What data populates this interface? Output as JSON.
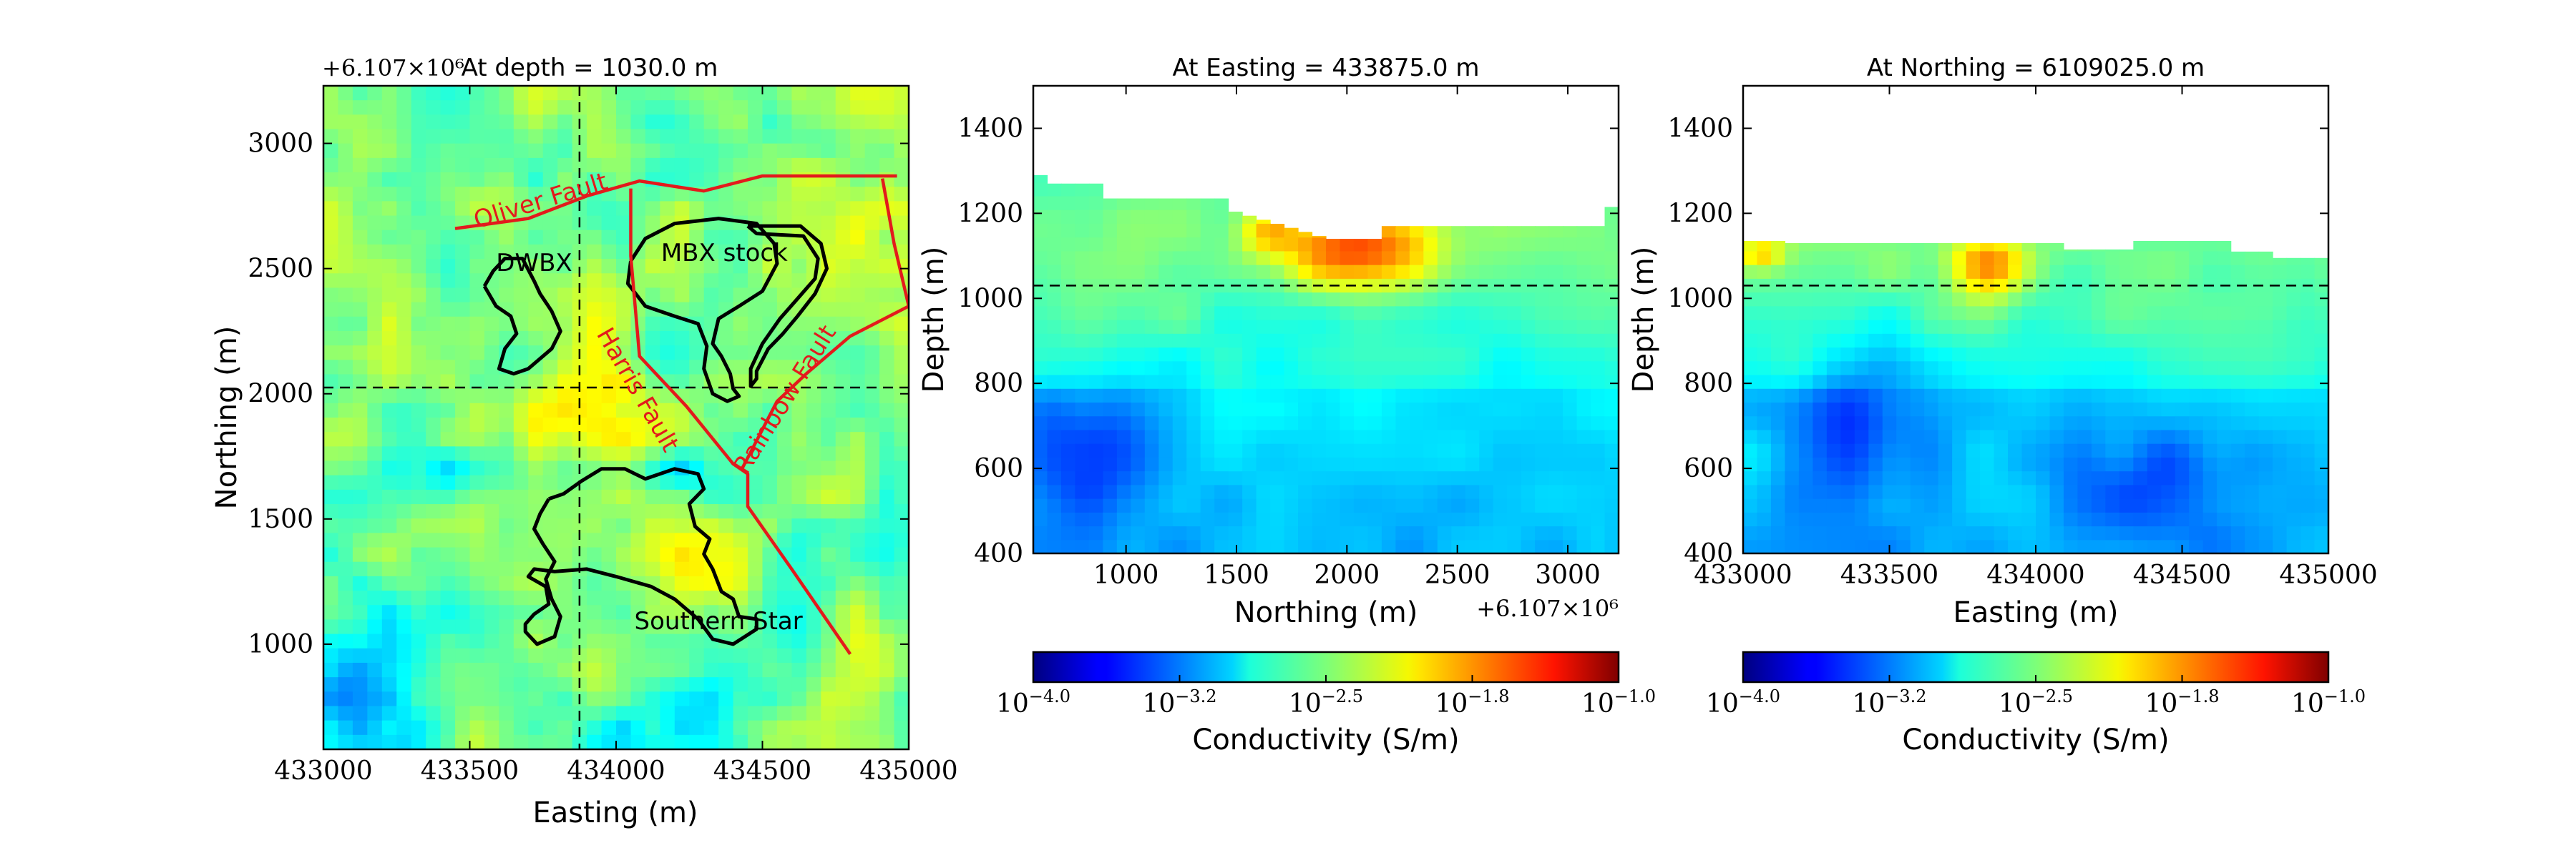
{
  "chart_data": [
    {
      "type": "heatmap",
      "title": "At depth = 1030.0 m",
      "xlabel": "Easting (m)",
      "ylabel": "Northing (m)",
      "xlim": [
        433000,
        435000
      ],
      "ylim": [
        580,
        3230
      ],
      "xticks": [
        433000,
        433500,
        434000,
        434500,
        435000
      ],
      "xtick_labels": [
        "433000",
        "433500",
        "434000",
        "434500",
        "435000"
      ],
      "yticks": [
        1000,
        1500,
        2000,
        2500,
        3000
      ],
      "ytick_labels": [
        "1000",
        "1500",
        "2000",
        "2500",
        "3000"
      ],
      "offset_text": "+6.107×10⁶",
      "crosshair": {
        "easting": 433875,
        "northing": 2025
      },
      "geology_labels": [
        {
          "text": "DWBX",
          "x": 433720,
          "y": 2490
        },
        {
          "text": "MBX stock",
          "x": 434370,
          "y": 2530
        },
        {
          "text": "Southern Star",
          "x": 434350,
          "y": 1060
        }
      ],
      "fault_labels": [
        {
          "text": "Oliver Fault",
          "x": 433750,
          "y": 2740,
          "angle": -17
        },
        {
          "text": "Harris Fault",
          "x": 434050,
          "y": 2000,
          "angle": 60
        },
        {
          "text": "Rainbow Fault",
          "x": 434600,
          "y": 1960,
          "angle": -58
        }
      ],
      "faults": [
        {
          "name": "Oliver Fault",
          "points": [
            [
              433450,
              2660
            ],
            [
              433700,
              2700
            ],
            [
              433900,
              2790
            ],
            [
              434080,
              2850
            ],
            [
              434300,
              2810
            ],
            [
              434500,
              2870
            ],
            [
              434700,
              2870
            ],
            [
              434960,
              2870
            ]
          ]
        },
        {
          "name": "Harris Fault",
          "points": [
            [
              434050,
              2820
            ],
            [
              434050,
              2550
            ],
            [
              434080,
              2150
            ],
            [
              434240,
              1950
            ],
            [
              434400,
              1720
            ],
            [
              434450,
              1680
            ],
            [
              434450,
              1550
            ],
            [
              434600,
              1300
            ],
            [
              434800,
              960
            ]
          ]
        },
        {
          "name": "Rainbow Fault",
          "points": [
            [
              434910,
              2860
            ],
            [
              434950,
              2600
            ],
            [
              435000,
              2350
            ],
            [
              434800,
              2230
            ],
            [
              434650,
              2080
            ],
            [
              434550,
              1970
            ],
            [
              434430,
              1700
            ]
          ]
        }
      ],
      "outlines": [
        {
          "name": "DWBX",
          "points": [
            [
              433550,
              2430
            ],
            [
              433580,
              2490
            ],
            [
              433620,
              2540
            ],
            [
              433680,
              2540
            ],
            [
              433720,
              2450
            ],
            [
              433740,
              2400
            ],
            [
              433780,
              2330
            ],
            [
              433810,
              2250
            ],
            [
              433780,
              2180
            ],
            [
              433700,
              2100
            ],
            [
              433650,
              2080
            ],
            [
              433600,
              2100
            ],
            [
              433620,
              2180
            ],
            [
              433660,
              2240
            ],
            [
              433640,
              2310
            ],
            [
              433590,
              2350
            ],
            [
              433550,
              2430
            ]
          ]
        },
        {
          "name": "MBX stock",
          "points": [
            [
              434050,
              2530
            ],
            [
              434100,
              2620
            ],
            [
              434200,
              2680
            ],
            [
              434350,
              2700
            ],
            [
              434480,
              2680
            ],
            [
              434540,
              2600
            ],
            [
              434550,
              2520
            ],
            [
              434500,
              2410
            ],
            [
              434420,
              2350
            ],
            [
              434350,
              2300
            ],
            [
              434330,
              2200
            ],
            [
              434360,
              2150
            ],
            [
              434390,
              2080
            ],
            [
              434400,
              2020
            ],
            [
              434420,
              1990
            ],
            [
              434380,
              1970
            ],
            [
              434330,
              2000
            ],
            [
              434300,
              2100
            ],
            [
              434310,
              2190
            ],
            [
              434280,
              2280
            ],
            [
              434200,
              2310
            ],
            [
              434100,
              2350
            ],
            [
              434040,
              2440
            ],
            [
              434050,
              2530
            ]
          ]
        },
        {
          "name": "MBX east",
          "points": [
            [
              434450,
              2670
            ],
            [
              434630,
              2670
            ],
            [
              434700,
              2600
            ],
            [
              434720,
              2500
            ],
            [
              434680,
              2400
            ],
            [
              434620,
              2310
            ],
            [
              434570,
              2240
            ],
            [
              434520,
              2180
            ],
            [
              434480,
              2090
            ],
            [
              434480,
              2060
            ],
            [
              434460,
              2030
            ],
            [
              434460,
              2100
            ],
            [
              434500,
              2200
            ],
            [
              434560,
              2300
            ],
            [
              434620,
              2380
            ],
            [
              434680,
              2460
            ],
            [
              434690,
              2540
            ],
            [
              434640,
              2630
            ],
            [
              434480,
              2640
            ],
            [
              434450,
              2670
            ]
          ]
        },
        {
          "name": "Southern Star",
          "points": [
            [
              433770,
              1580
            ],
            [
              433820,
              1600
            ],
            [
              433880,
              1650
            ],
            [
              433950,
              1700
            ],
            [
              434030,
              1700
            ],
            [
              434100,
              1660
            ],
            [
              434200,
              1700
            ],
            [
              434280,
              1680
            ],
            [
              434300,
              1620
            ],
            [
              434250,
              1560
            ],
            [
              434270,
              1470
            ],
            [
              434320,
              1420
            ],
            [
              434300,
              1360
            ],
            [
              434330,
              1300
            ],
            [
              434360,
              1210
            ],
            [
              434400,
              1180
            ],
            [
              434420,
              1110
            ],
            [
              434480,
              1100
            ],
            [
              434480,
              1060
            ],
            [
              434400,
              1000
            ],
            [
              434330,
              1020
            ],
            [
              434280,
              1100
            ],
            [
              434200,
              1180
            ],
            [
              434120,
              1230
            ],
            [
              434000,
              1270
            ],
            [
              433900,
              1300
            ],
            [
              433790,
              1290
            ],
            [
              433720,
              1300
            ],
            [
              433700,
              1270
            ],
            [
              433760,
              1230
            ],
            [
              433770,
              1160
            ],
            [
              433720,
              1120
            ],
            [
              433690,
              1080
            ],
            [
              433690,
              1050
            ],
            [
              433730,
              1000
            ],
            [
              433790,
              1030
            ],
            [
              433810,
              1110
            ],
            [
              433780,
              1180
            ],
            [
              433760,
              1260
            ],
            [
              433790,
              1330
            ],
            [
              433750,
              1400
            ],
            [
              433720,
              1460
            ],
            [
              433740,
              1520
            ],
            [
              433770,
              1580
            ]
          ]
        }
      ]
    },
    {
      "type": "heatmap",
      "title": "At Easting = 433875.0 m",
      "xlabel": "Northing (m)",
      "ylabel": "Depth (m)",
      "xlim": [
        580,
        3230
      ],
      "ylim": [
        400,
        1500
      ],
      "xticks": [
        1000,
        1500,
        2000,
        2500,
        3000
      ],
      "xtick_labels": [
        "1000",
        "1500",
        "2000",
        "2500",
        "3000"
      ],
      "yticks": [
        400,
        600,
        800,
        1000,
        1200,
        1400
      ],
      "ytick_labels": [
        "400",
        "600",
        "800",
        "1000",
        "1200",
        "1400"
      ],
      "offset_text": "+6.107×10⁶",
      "depth_line": 1030
    },
    {
      "type": "heatmap",
      "title": "At Northing = 6109025.0 m",
      "xlabel": "Easting (m)",
      "ylabel": "Depth (m)",
      "xlim": [
        433000,
        435000
      ],
      "ylim": [
        400,
        1500
      ],
      "xticks": [
        433000,
        433500,
        434000,
        434500,
        435000
      ],
      "xtick_labels": [
        "433000",
        "433500",
        "434000",
        "434500",
        "435000"
      ],
      "yticks": [
        400,
        600,
        800,
        1000,
        1200,
        1400
      ],
      "ytick_labels": [
        "400",
        "600",
        "800",
        "1000",
        "1200",
        "1400"
      ],
      "depth_line": 1030
    }
  ],
  "colorbars": [
    {
      "label": "Conductivity (S/m)",
      "tick_exponents": [
        "−4.0",
        "−3.2",
        "−2.5",
        "−1.8",
        "−1.0"
      ],
      "log_ticks": [
        -4.0,
        -3.25,
        -2.5,
        -1.75,
        -1.0
      ]
    },
    {
      "label": "Conductivity (S/m)",
      "tick_exponents": [
        "−4.0",
        "−3.2",
        "−2.5",
        "−1.8",
        "−1.0"
      ],
      "log_ticks": [
        -4.0,
        -3.25,
        -2.5,
        -1.75,
        -1.0
      ]
    }
  ],
  "colors": {
    "fault": "#e31a1c",
    "outline": "#000000",
    "colormap": "jet"
  }
}
